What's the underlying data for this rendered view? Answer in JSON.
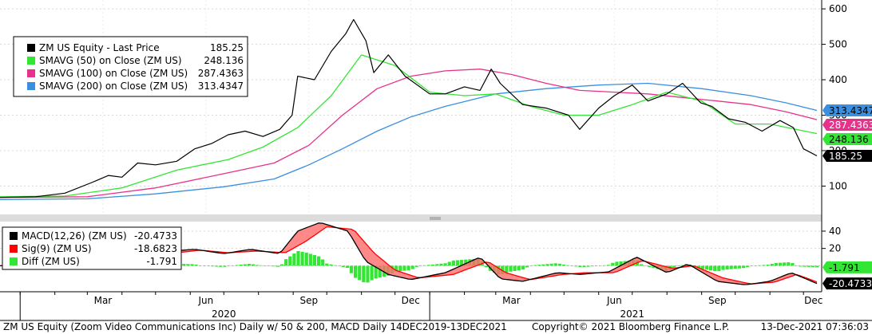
{
  "chart_data": {
    "type": "line",
    "upper_panel": {
      "yaxis": {
        "ticks": [
          100,
          200,
          300,
          400,
          500,
          600
        ],
        "ylim": [
          20,
          625
        ]
      },
      "legend": [
        {
          "label": "ZM US Equity - Last Price",
          "value": "185.25",
          "color": "#000000"
        },
        {
          "label": "SMAVG (50)  on Close (ZM US)",
          "value": "248.136",
          "color": "#33e633"
        },
        {
          "label": "SMAVG (100)  on Close (ZM US)",
          "value": "287.4363",
          "color": "#e8318a"
        },
        {
          "label": "SMAVG (200)  on Close (ZM US)",
          "value": "313.4347",
          "color": "#3b8fe0"
        }
      ],
      "series": [
        {
          "name": "ZM US Equity - Last Price",
          "color": "#000000",
          "x": [
            "2019-12-14",
            "2020-01-15",
            "2020-02-10",
            "2020-03-05",
            "2020-03-20",
            "2020-04-01",
            "2020-04-15",
            "2020-05-01",
            "2020-05-20",
            "2020-06-05",
            "2020-06-20",
            "2020-07-05",
            "2020-07-20",
            "2020-08-05",
            "2020-08-20",
            "2020-08-31",
            "2020-09-05",
            "2020-09-20",
            "2020-10-05",
            "2020-10-18",
            "2020-10-25",
            "2020-11-05",
            "2020-11-12",
            "2020-11-25",
            "2020-12-10",
            "2021-01-01",
            "2021-01-15",
            "2021-02-01",
            "2021-02-15",
            "2021-02-25",
            "2021-03-05",
            "2021-03-25",
            "2021-04-15",
            "2021-05-05",
            "2021-05-15",
            "2021-06-01",
            "2021-06-15",
            "2021-07-01",
            "2021-07-15",
            "2021-08-01",
            "2021-08-15",
            "2021-08-31",
            "2021-09-10",
            "2021-09-25",
            "2021-10-10",
            "2021-10-25",
            "2021-11-10",
            "2021-11-22",
            "2021-12-01",
            "2021-12-13"
          ],
          "values": [
            68,
            70,
            80,
            110,
            130,
            125,
            165,
            160,
            170,
            205,
            220,
            245,
            255,
            240,
            260,
            300,
            410,
            400,
            480,
            530,
            570,
            510,
            420,
            470,
            410,
            360,
            360,
            380,
            370,
            430,
            390,
            330,
            320,
            300,
            260,
            320,
            355,
            385,
            340,
            360,
            390,
            335,
            325,
            290,
            280,
            255,
            285,
            265,
            205,
            185.25
          ]
        },
        {
          "name": "SMAVG (50)  on Close (ZM US)",
          "color": "#33e633",
          "x": [
            "2019-12-14",
            "2020-02-10",
            "2020-04-01",
            "2020-05-20",
            "2020-07-05",
            "2020-08-05",
            "2020-09-05",
            "2020-10-05",
            "2020-11-01",
            "2020-12-01",
            "2021-01-01",
            "2021-02-01",
            "2021-03-01",
            "2021-04-01",
            "2021-05-01",
            "2021-06-01",
            "2021-07-01",
            "2021-08-01",
            "2021-09-01",
            "2021-10-01",
            "2021-11-01",
            "2021-12-13"
          ],
          "values": [
            70,
            72,
            95,
            145,
            175,
            210,
            265,
            355,
            470,
            440,
            365,
            355,
            360,
            325,
            300,
            300,
            330,
            365,
            340,
            275,
            275,
            248.136
          ]
        },
        {
          "name": "SMAVG (100)  on Close (ZM US)",
          "color": "#e8318a",
          "x": [
            "2019-12-14",
            "2020-03-01",
            "2020-05-01",
            "2020-07-01",
            "2020-08-15",
            "2020-09-15",
            "2020-10-15",
            "2020-11-15",
            "2020-12-15",
            "2021-01-15",
            "2021-02-15",
            "2021-03-15",
            "2021-04-15",
            "2021-05-15",
            "2021-06-15",
            "2021-07-15",
            "2021-08-15",
            "2021-09-15",
            "2021-10-15",
            "2021-11-15",
            "2021-12-13"
          ],
          "values": [
            68,
            70,
            95,
            135,
            165,
            215,
            300,
            375,
            410,
            425,
            430,
            415,
            390,
            370,
            365,
            360,
            350,
            340,
            330,
            310,
            287.4363
          ]
        },
        {
          "name": "SMAVG (200)  on Close (ZM US)",
          "color": "#3b8fe0",
          "x": [
            "2019-12-14",
            "2020-03-01",
            "2020-05-01",
            "2020-07-01",
            "2020-08-15",
            "2020-09-15",
            "2020-10-15",
            "2020-11-15",
            "2020-12-15",
            "2021-01-15",
            "2021-03-01",
            "2021-04-15",
            "2021-06-01",
            "2021-07-15",
            "2021-09-01",
            "2021-10-15",
            "2021-11-15",
            "2021-12-13"
          ],
          "values": [
            62,
            64,
            78,
            98,
            120,
            160,
            205,
            255,
            295,
            325,
            360,
            375,
            385,
            390,
            375,
            355,
            335,
            313.4347
          ]
        }
      ],
      "value_tags": [
        {
          "text": "313.4347",
          "value": 313.4347,
          "bg": "#3b8fe0",
          "fg": "#000000"
        },
        {
          "text": "287.4363",
          "value": 287.4363,
          "bg": "#e8318a",
          "fg": "#ffffff"
        },
        {
          "text": "248.136",
          "value": 248.136,
          "bg": "#33e633",
          "fg": "#000000"
        },
        {
          "text": "185.25",
          "value": 185.25,
          "bg": "#000000",
          "fg": "#ffffff"
        }
      ]
    },
    "lower_panel": {
      "yaxis": {
        "ticks": [
          20,
          40
        ],
        "ylim": [
          -30,
          51
        ]
      },
      "legend": [
        {
          "label": "MACD(12,26) (ZM US)",
          "value": "-20.4733",
          "color": "#000000"
        },
        {
          "label": "Sig(9) (ZM US)",
          "value": "-18.6823",
          "color": "#ff0000"
        },
        {
          "label": "Diff (ZM US)",
          "value": "-1.791",
          "color": "#33e633"
        }
      ],
      "series": [
        {
          "name": "MACD(12,26) (ZM US)",
          "color": "#000000",
          "x": [
            "2019-12-14",
            "2020-02-15",
            "2020-04-01",
            "2020-05-15",
            "2020-06-05",
            "2020-07-01",
            "2020-07-25",
            "2020-08-20",
            "2020-09-05",
            "2020-09-25",
            "2020-10-20",
            "2020-11-05",
            "2020-11-25",
            "2020-12-15",
            "2021-01-15",
            "2021-02-15",
            "2021-03-05",
            "2021-03-25",
            "2021-04-25",
            "2021-05-15",
            "2021-06-10",
            "2021-07-05",
            "2021-08-01",
            "2021-08-20",
            "2021-09-15",
            "2021-10-10",
            "2021-11-01",
            "2021-11-20",
            "2021-12-13"
          ],
          "values": [
            0,
            0,
            10,
            17,
            19,
            14,
            19,
            14,
            40,
            50,
            40,
            5,
            -10,
            -16,
            -8,
            10,
            -15,
            -18,
            -8,
            -10,
            -7,
            10,
            -8,
            2,
            -18,
            -22,
            -18,
            -8,
            -20.4733
          ]
        },
        {
          "name": "Sig(9) (ZM US)",
          "color": "#ff0000",
          "x": [
            "2019-12-14",
            "2020-02-15",
            "2020-04-05",
            "2020-05-20",
            "2020-06-10",
            "2020-07-05",
            "2020-07-30",
            "2020-08-25",
            "2020-09-12",
            "2020-10-01",
            "2020-10-25",
            "2020-11-12",
            "2020-12-01",
            "2020-12-22",
            "2021-01-22",
            "2021-02-22",
            "2021-03-10",
            "2021-04-01",
            "2021-04-30",
            "2021-05-20",
            "2021-06-15",
            "2021-07-10",
            "2021-08-06",
            "2021-08-25",
            "2021-09-20",
            "2021-10-15",
            "2021-11-05",
            "2021-11-25",
            "2021-12-13"
          ],
          "values": [
            0,
            0,
            8,
            15,
            18,
            15,
            17,
            15,
            28,
            45,
            42,
            15,
            -5,
            -14,
            -10,
            5,
            -8,
            -16,
            -10,
            -8,
            -8,
            6,
            -3,
            0,
            -14,
            -21,
            -19,
            -10,
            -18.6823
          ]
        }
      ],
      "value_tags": [
        {
          "text": "-1.791",
          "value": -1.791,
          "bg": "#33e633",
          "fg": "#000000"
        },
        {
          "text": "-20.4733",
          "value": -20.4733,
          "bg": "#000000",
          "fg": "#ffffff"
        }
      ]
    },
    "xaxis": {
      "range": [
        "2019-12-14",
        "2021-12-13"
      ],
      "month_labels": [
        {
          "text": "Mar",
          "date": "2020-03-15"
        },
        {
          "text": "Jun",
          "date": "2020-06-15"
        },
        {
          "text": "Sep",
          "date": "2020-09-15"
        },
        {
          "text": "Dec",
          "date": "2020-12-15"
        },
        {
          "text": "Mar",
          "date": "2021-03-15"
        },
        {
          "text": "Jun",
          "date": "2021-06-15"
        },
        {
          "text": "Sep",
          "date": "2021-09-15"
        },
        {
          "text": "Dec",
          "date": "2021-12-10"
        }
      ],
      "year_labels": [
        {
          "text": "2020",
          "date": "2020-07-01"
        },
        {
          "text": "2021",
          "date": "2021-07-01"
        }
      ]
    }
  },
  "footer": {
    "left": "ZM US Equity (Zoom Video Communications Inc) Daily w/ 50 & 200, MACD  Daily 14DEC2019-13DEC2021",
    "center": "Copyright© 2021 Bloomberg Finance L.P.",
    "right": "13-Dec-2021 07:36:03"
  }
}
